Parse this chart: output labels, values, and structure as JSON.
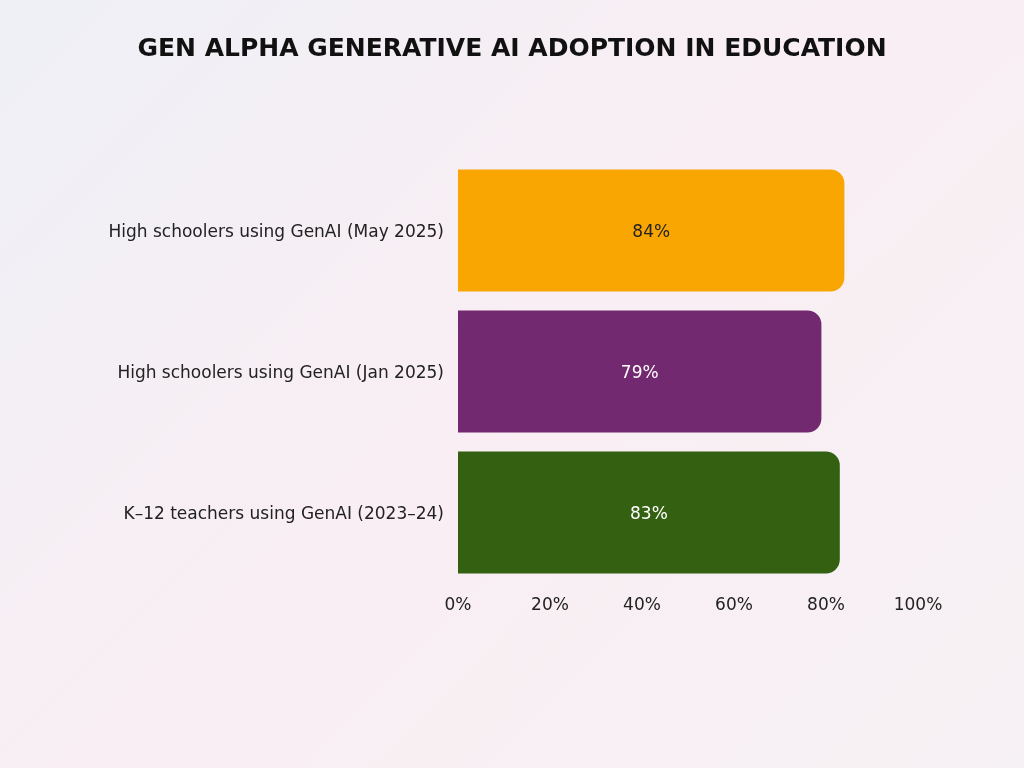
{
  "chart_data": {
    "type": "bar",
    "orientation": "horizontal",
    "title": "GEN ALPHA GENERATIVE AI ADOPTION IN EDUCATION",
    "categories": [
      "High schoolers using GenAI (May 2025)",
      "High schoolers using GenAI (Jan 2025)",
      "K–12 teachers using GenAI (2023–24)"
    ],
    "values": [
      84,
      79,
      83
    ],
    "colors": [
      "#f9a602",
      "#72296f",
      "#336111"
    ],
    "value_labels": [
      "84%",
      "79%",
      "83%"
    ],
    "xlim": [
      0,
      100
    ],
    "xticks": [
      {
        "value": 0,
        "label": "0%"
      },
      {
        "value": 20,
        "label": "20%"
      },
      {
        "value": 40,
        "label": "40%"
      },
      {
        "value": 60,
        "label": "60%"
      },
      {
        "value": 80,
        "label": "80%"
      },
      {
        "value": 100,
        "label": "100%"
      }
    ],
    "grid": false
  }
}
